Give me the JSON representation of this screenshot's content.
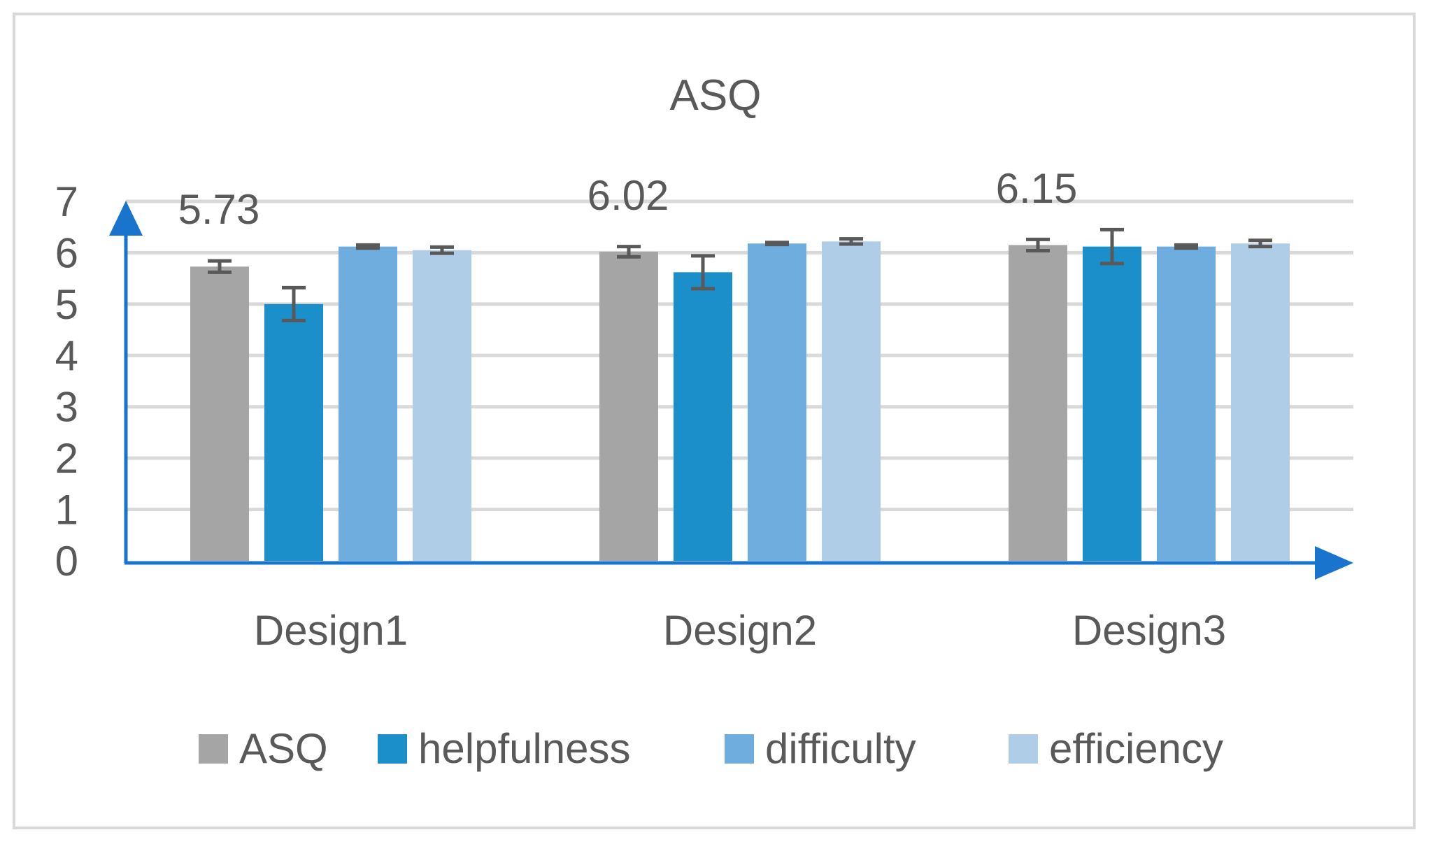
{
  "chart_data": {
    "type": "bar",
    "title": "ASQ",
    "categories": [
      "Design1",
      "Design2",
      "Design3"
    ],
    "series": [
      {
        "name": "ASQ",
        "color": "#a5a5a5",
        "values": [
          5.73,
          6.02,
          6.15
        ],
        "error": [
          0.11,
          0.1,
          0.11
        ]
      },
      {
        "name": "helpfulness",
        "color": "#1b8fca",
        "values": [
          5.0,
          5.62,
          6.12
        ],
        "error": [
          0.32,
          0.32,
          0.33
        ]
      },
      {
        "name": "difficulty",
        "color": "#6eaddd",
        "values": [
          6.12,
          6.18,
          6.12
        ],
        "error": [
          0.03,
          0.02,
          0.03
        ]
      },
      {
        "name": "efficiency",
        "color": "#b0cde8",
        "values": [
          6.05,
          6.22,
          6.18
        ],
        "error": [
          0.06,
          0.05,
          0.06
        ]
      }
    ],
    "data_labels": [
      "5.73",
      "6.02",
      "6.15"
    ],
    "yticks": [
      "0",
      "1",
      "2",
      "3",
      "4",
      "5",
      "6",
      "7"
    ],
    "ylim": [
      0,
      7
    ],
    "xlabel": "",
    "ylabel": "",
    "grid": true,
    "legend_position": "bottom",
    "axis_color": "#1874cd",
    "grid_color": "#d9d9d9",
    "error_bar_color": "#595959"
  }
}
